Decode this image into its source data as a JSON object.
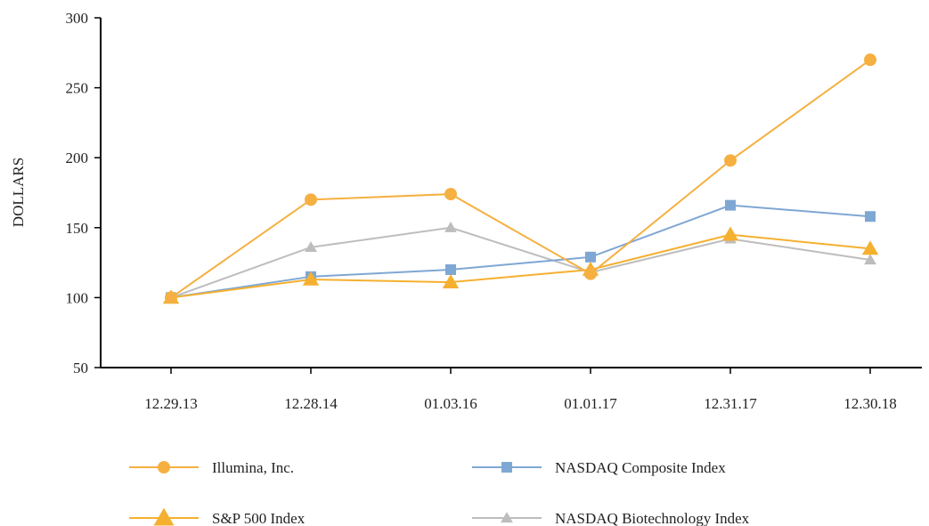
{
  "chart_data": {
    "type": "line",
    "ylabel": "DOLLARS",
    "xlabel": "",
    "ylim": [
      50,
      300
    ],
    "yticks": [
      "50",
      "100",
      "150",
      "200",
      "250",
      "300"
    ],
    "categories": [
      "12.29.13",
      "12.28.14",
      "01.03.16",
      "01.01.17",
      "12.31.17",
      "12.30.18"
    ],
    "grid": false,
    "legend_position": "bottom",
    "series": [
      {
        "name": "Illumina, Inc.",
        "color": "#F5B041",
        "marker": "circle",
        "values": [
          100,
          170,
          174,
          117,
          198,
          270
        ]
      },
      {
        "name": "NASDAQ Composite Index",
        "color": "#7FA7D3",
        "marker": "square",
        "values": [
          100,
          115,
          120,
          129,
          166,
          158
        ]
      },
      {
        "name": "S&P 500 Index",
        "color": "#F5B030",
        "marker": "triangle",
        "values": [
          100,
          113,
          111,
          120,
          145,
          135
        ]
      },
      {
        "name": "NASDAQ Biotechnology Index",
        "color": "#BDBDBD",
        "marker": "triangle",
        "values": [
          100,
          136,
          150,
          118,
          142,
          127
        ]
      }
    ]
  }
}
